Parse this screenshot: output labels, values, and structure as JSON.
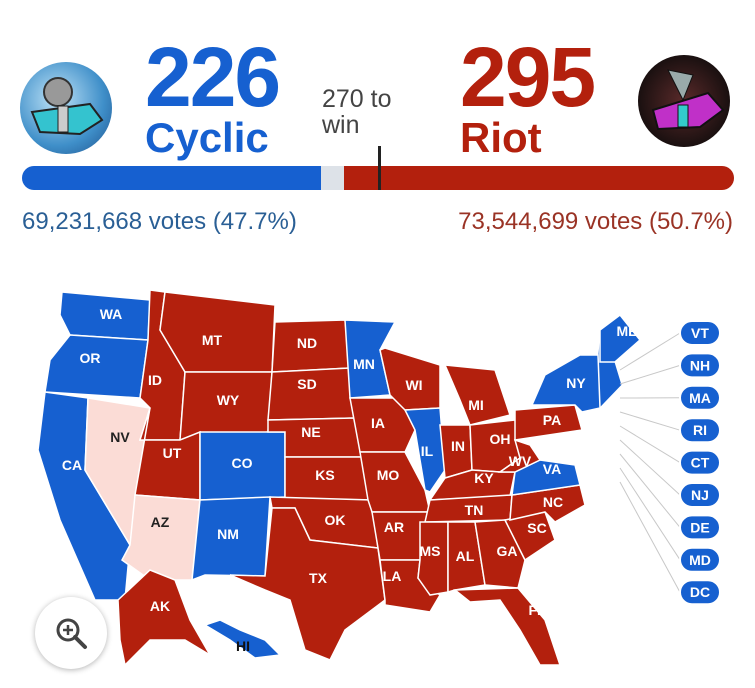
{
  "colors": {
    "cyclic": "#1660d0",
    "riot": "#b3200d",
    "tossup": "#fbdcd6",
    "threshold": "#dde2e8"
  },
  "left": {
    "name": "Cyclic",
    "electoral_votes": "226",
    "votes": "69,231,668 votes (47.7%)",
    "avatar": "cyclic-avatar"
  },
  "right": {
    "name": "Riot",
    "electoral_votes": "295",
    "votes": "73,544,699 votes (50.7%)",
    "avatar": "riot-avatar"
  },
  "threshold": {
    "line1": "270 to",
    "line2": "win"
  },
  "progress": {
    "cyclic_ev": 226,
    "riot_ev": 295,
    "total_ev": 538,
    "to_win": 270
  },
  "states": [
    {
      "code": "WA",
      "winner": "cyclic"
    },
    {
      "code": "OR",
      "winner": "cyclic"
    },
    {
      "code": "CA",
      "winner": "cyclic"
    },
    {
      "code": "NV",
      "winner": "none"
    },
    {
      "code": "ID",
      "winner": "riot"
    },
    {
      "code": "MT",
      "winner": "riot"
    },
    {
      "code": "WY",
      "winner": "riot"
    },
    {
      "code": "UT",
      "winner": "riot"
    },
    {
      "code": "AZ",
      "winner": "none"
    },
    {
      "code": "CO",
      "winner": "cyclic"
    },
    {
      "code": "NM",
      "winner": "cyclic"
    },
    {
      "code": "ND",
      "winner": "riot"
    },
    {
      "code": "SD",
      "winner": "riot"
    },
    {
      "code": "NE",
      "winner": "riot"
    },
    {
      "code": "KS",
      "winner": "riot"
    },
    {
      "code": "OK",
      "winner": "riot"
    },
    {
      "code": "TX",
      "winner": "riot"
    },
    {
      "code": "MN",
      "winner": "cyclic"
    },
    {
      "code": "IA",
      "winner": "riot"
    },
    {
      "code": "MO",
      "winner": "riot"
    },
    {
      "code": "AR",
      "winner": "riot"
    },
    {
      "code": "LA",
      "winner": "riot"
    },
    {
      "code": "WI",
      "winner": "riot"
    },
    {
      "code": "IL",
      "winner": "cyclic"
    },
    {
      "code": "MI",
      "winner": "riot"
    },
    {
      "code": "IN",
      "winner": "riot"
    },
    {
      "code": "OH",
      "winner": "riot"
    },
    {
      "code": "KY",
      "winner": "riot"
    },
    {
      "code": "TN",
      "winner": "riot"
    },
    {
      "code": "MS",
      "winner": "riot"
    },
    {
      "code": "AL",
      "winner": "riot"
    },
    {
      "code": "GA",
      "winner": "riot"
    },
    {
      "code": "FL",
      "winner": "riot"
    },
    {
      "code": "SC",
      "winner": "riot"
    },
    {
      "code": "NC",
      "winner": "riot"
    },
    {
      "code": "VA",
      "winner": "cyclic"
    },
    {
      "code": "WV",
      "winner": "riot"
    },
    {
      "code": "PA",
      "winner": "riot"
    },
    {
      "code": "NY",
      "winner": "cyclic"
    },
    {
      "code": "ME",
      "winner": "cyclic"
    },
    {
      "code": "AK",
      "winner": "riot"
    },
    {
      "code": "HI",
      "winner": "cyclic"
    }
  ],
  "small_states": [
    {
      "code": "VT",
      "winner": "cyclic"
    },
    {
      "code": "NH",
      "winner": "cyclic"
    },
    {
      "code": "MA",
      "winner": "cyclic"
    },
    {
      "code": "RI",
      "winner": "cyclic"
    },
    {
      "code": "CT",
      "winner": "cyclic"
    },
    {
      "code": "NJ",
      "winner": "cyclic"
    },
    {
      "code": "DE",
      "winner": "cyclic"
    },
    {
      "code": "MD",
      "winner": "cyclic"
    },
    {
      "code": "DC",
      "winner": "cyclic"
    }
  ],
  "zoom_button": {
    "icon": "zoom-in-icon"
  }
}
